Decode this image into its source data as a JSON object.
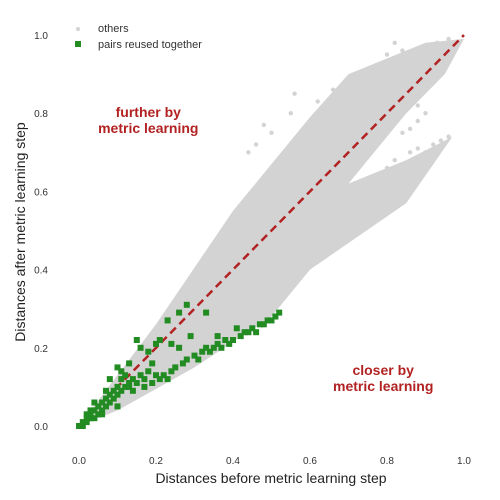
{
  "chart_data": {
    "type": "scatter",
    "title": "",
    "xlabel": "Distances before metric learning step",
    "ylabel": "Distances after metric learning step",
    "xlim": [
      0.0,
      1.0
    ],
    "ylim": [
      0.0,
      1.0
    ],
    "xticks": [
      "0.0",
      "0.2",
      "0.4",
      "0.6",
      "0.8",
      "1.0"
    ],
    "yticks": [
      "0.0",
      "0.2",
      "0.4",
      "0.6",
      "0.8",
      "1.0"
    ],
    "grid": false,
    "legend": {
      "placement": "top-left",
      "entries": [
        "others",
        "pairs reused together"
      ]
    },
    "reference_line": {
      "type": "y=x",
      "style": "dashed",
      "color": "#b22222"
    },
    "annotations": [
      {
        "lines": [
          "further by",
          "metric learning"
        ],
        "x": 0.18,
        "y": 0.79
      },
      {
        "lines": [
          "closer by",
          "metric learning"
        ],
        "x": 0.79,
        "y": 0.13
      }
    ],
    "series": [
      {
        "name": "others",
        "marker": "dot",
        "color": "#d3d3d3",
        "region": [
          [
            0.0,
            0.0
          ],
          [
            0.2,
            0.26
          ],
          [
            0.4,
            0.55
          ],
          [
            0.6,
            0.79
          ],
          [
            0.7,
            0.9
          ],
          [
            0.9,
            0.98
          ],
          [
            1.0,
            0.99
          ],
          [
            0.95,
            0.9
          ],
          [
            0.85,
            0.8
          ],
          [
            0.7,
            0.62
          ],
          [
            0.85,
            0.68
          ],
          [
            0.97,
            0.74
          ],
          [
            0.85,
            0.57
          ],
          [
            0.6,
            0.4
          ],
          [
            0.5,
            0.28
          ],
          [
            0.3,
            0.15
          ],
          [
            0.1,
            0.04
          ],
          [
            0.0,
            0.0
          ]
        ],
        "points": [
          [
            0.82,
            0.98
          ],
          [
            0.84,
            0.96
          ],
          [
            0.83,
            0.9
          ],
          [
            0.82,
            0.93
          ],
          [
            0.8,
            0.95
          ],
          [
            0.78,
            0.91
          ],
          [
            0.72,
            0.88
          ],
          [
            0.71,
            0.86
          ],
          [
            0.69,
            0.84
          ],
          [
            0.66,
            0.86
          ],
          [
            0.62,
            0.83
          ],
          [
            0.56,
            0.85
          ],
          [
            0.55,
            0.8
          ],
          [
            0.5,
            0.75
          ],
          [
            0.48,
            0.77
          ],
          [
            0.46,
            0.72
          ],
          [
            0.44,
            0.7
          ],
          [
            0.9,
            0.92
          ],
          [
            0.92,
            0.95
          ],
          [
            0.93,
            0.98
          ],
          [
            0.95,
            0.97
          ],
          [
            0.96,
            0.99
          ],
          [
            0.97,
            0.96
          ],
          [
            0.98,
            0.98
          ],
          [
            0.86,
            0.84
          ],
          [
            0.88,
            0.82
          ],
          [
            0.9,
            0.8
          ],
          [
            0.88,
            0.78
          ],
          [
            0.86,
            0.76
          ],
          [
            0.84,
            0.75
          ],
          [
            0.9,
            0.7
          ],
          [
            0.92,
            0.72
          ],
          [
            0.94,
            0.73
          ],
          [
            0.96,
            0.74
          ],
          [
            0.88,
            0.71
          ],
          [
            0.86,
            0.7
          ],
          [
            0.82,
            0.68
          ],
          [
            0.8,
            0.66
          ],
          [
            0.78,
            0.64
          ],
          [
            0.76,
            0.62
          ],
          [
            0.72,
            0.6
          ],
          [
            0.7,
            0.58
          ],
          [
            0.78,
            0.6
          ],
          [
            0.8,
            0.62
          ],
          [
            0.82,
            0.64
          ],
          [
            0.74,
            0.58
          ],
          [
            0.68,
            0.56
          ],
          [
            0.66,
            0.54
          ],
          [
            0.62,
            0.52
          ],
          [
            0.6,
            0.5
          ],
          [
            0.58,
            0.46
          ],
          [
            0.56,
            0.44
          ],
          [
            0.54,
            0.42
          ],
          [
            0.52,
            0.38
          ],
          [
            0.75,
            0.72
          ],
          [
            0.78,
            0.76
          ],
          [
            0.65,
            0.7
          ],
          [
            0.6,
            0.66
          ],
          [
            0.58,
            0.62
          ],
          [
            0.52,
            0.58
          ],
          [
            0.5,
            0.54
          ],
          [
            0.46,
            0.5
          ],
          [
            0.42,
            0.46
          ],
          [
            0.4,
            0.42
          ],
          [
            0.38,
            0.4
          ],
          [
            0.36,
            0.38
          ],
          [
            0.34,
            0.36
          ],
          [
            0.3,
            0.32
          ],
          [
            0.28,
            0.3
          ],
          [
            0.26,
            0.28
          ],
          [
            0.24,
            0.26
          ],
          [
            0.22,
            0.24
          ],
          [
            0.2,
            0.22
          ],
          [
            0.18,
            0.2
          ],
          [
            0.16,
            0.18
          ],
          [
            0.14,
            0.16
          ],
          [
            0.12,
            0.14
          ],
          [
            0.1,
            0.12
          ],
          [
            0.44,
            0.36
          ],
          [
            0.4,
            0.3
          ],
          [
            0.36,
            0.27
          ],
          [
            0.32,
            0.24
          ],
          [
            0.28,
            0.2
          ],
          [
            0.24,
            0.17
          ],
          [
            0.2,
            0.14
          ],
          [
            0.16,
            0.11
          ],
          [
            0.12,
            0.08
          ],
          [
            0.08,
            0.06
          ],
          [
            0.06,
            0.05
          ],
          [
            0.04,
            0.03
          ]
        ]
      },
      {
        "name": "pairs reused together",
        "marker": "square",
        "color": "#228b22",
        "points": [
          [
            0.0,
            0.0
          ],
          [
            0.01,
            0.0
          ],
          [
            0.01,
            0.01
          ],
          [
            0.02,
            0.01
          ],
          [
            0.02,
            0.02
          ],
          [
            0.03,
            0.02
          ],
          [
            0.03,
            0.03
          ],
          [
            0.04,
            0.02
          ],
          [
            0.04,
            0.04
          ],
          [
            0.05,
            0.03
          ],
          [
            0.05,
            0.05
          ],
          [
            0.06,
            0.04
          ],
          [
            0.06,
            0.06
          ],
          [
            0.07,
            0.05
          ],
          [
            0.07,
            0.07
          ],
          [
            0.08,
            0.06
          ],
          [
            0.08,
            0.08
          ],
          [
            0.09,
            0.07
          ],
          [
            0.09,
            0.09
          ],
          [
            0.1,
            0.08
          ],
          [
            0.1,
            0.1
          ],
          [
            0.11,
            0.09
          ],
          [
            0.11,
            0.12
          ],
          [
            0.12,
            0.1
          ],
          [
            0.12,
            0.13
          ],
          [
            0.13,
            0.11
          ],
          [
            0.13,
            0.1
          ],
          [
            0.14,
            0.12
          ],
          [
            0.15,
            0.11
          ],
          [
            0.16,
            0.13
          ],
          [
            0.17,
            0.12
          ],
          [
            0.18,
            0.14
          ],
          [
            0.19,
            0.11
          ],
          [
            0.2,
            0.13
          ],
          [
            0.21,
            0.12
          ],
          [
            0.22,
            0.13
          ],
          [
            0.23,
            0.12
          ],
          [
            0.24,
            0.14
          ],
          [
            0.25,
            0.15
          ],
          [
            0.27,
            0.16
          ],
          [
            0.28,
            0.17
          ],
          [
            0.3,
            0.18
          ],
          [
            0.31,
            0.17
          ],
          [
            0.32,
            0.19
          ],
          [
            0.33,
            0.2
          ],
          [
            0.34,
            0.19
          ],
          [
            0.35,
            0.2
          ],
          [
            0.36,
            0.21
          ],
          [
            0.37,
            0.2
          ],
          [
            0.38,
            0.22
          ],
          [
            0.39,
            0.21
          ],
          [
            0.4,
            0.22
          ],
          [
            0.42,
            0.23
          ],
          [
            0.43,
            0.24
          ],
          [
            0.44,
            0.24
          ],
          [
            0.45,
            0.25
          ],
          [
            0.46,
            0.24
          ],
          [
            0.47,
            0.26
          ],
          [
            0.48,
            0.26
          ],
          [
            0.49,
            0.27
          ],
          [
            0.5,
            0.27
          ],
          [
            0.51,
            0.28
          ],
          [
            0.52,
            0.29
          ],
          [
            0.15,
            0.22
          ],
          [
            0.18,
            0.19
          ],
          [
            0.2,
            0.21
          ],
          [
            0.23,
            0.27
          ],
          [
            0.26,
            0.29
          ],
          [
            0.28,
            0.31
          ],
          [
            0.33,
            0.29
          ],
          [
            0.13,
            0.16
          ],
          [
            0.1,
            0.15
          ],
          [
            0.26,
            0.2
          ],
          [
            0.29,
            0.23
          ],
          [
            0.16,
            0.2
          ],
          [
            0.21,
            0.22
          ],
          [
            0.24,
            0.21
          ],
          [
            0.08,
            0.12
          ],
          [
            0.11,
            0.14
          ],
          [
            0.07,
            0.09
          ],
          [
            0.14,
            0.09
          ],
          [
            0.17,
            0.1
          ],
          [
            0.19,
            0.16
          ],
          [
            0.36,
            0.23
          ],
          [
            0.41,
            0.25
          ],
          [
            0.04,
            0.06
          ],
          [
            0.03,
            0.04
          ],
          [
            0.02,
            0.03
          ],
          [
            0.1,
            0.05
          ],
          [
            0.06,
            0.03
          ]
        ]
      }
    ]
  }
}
